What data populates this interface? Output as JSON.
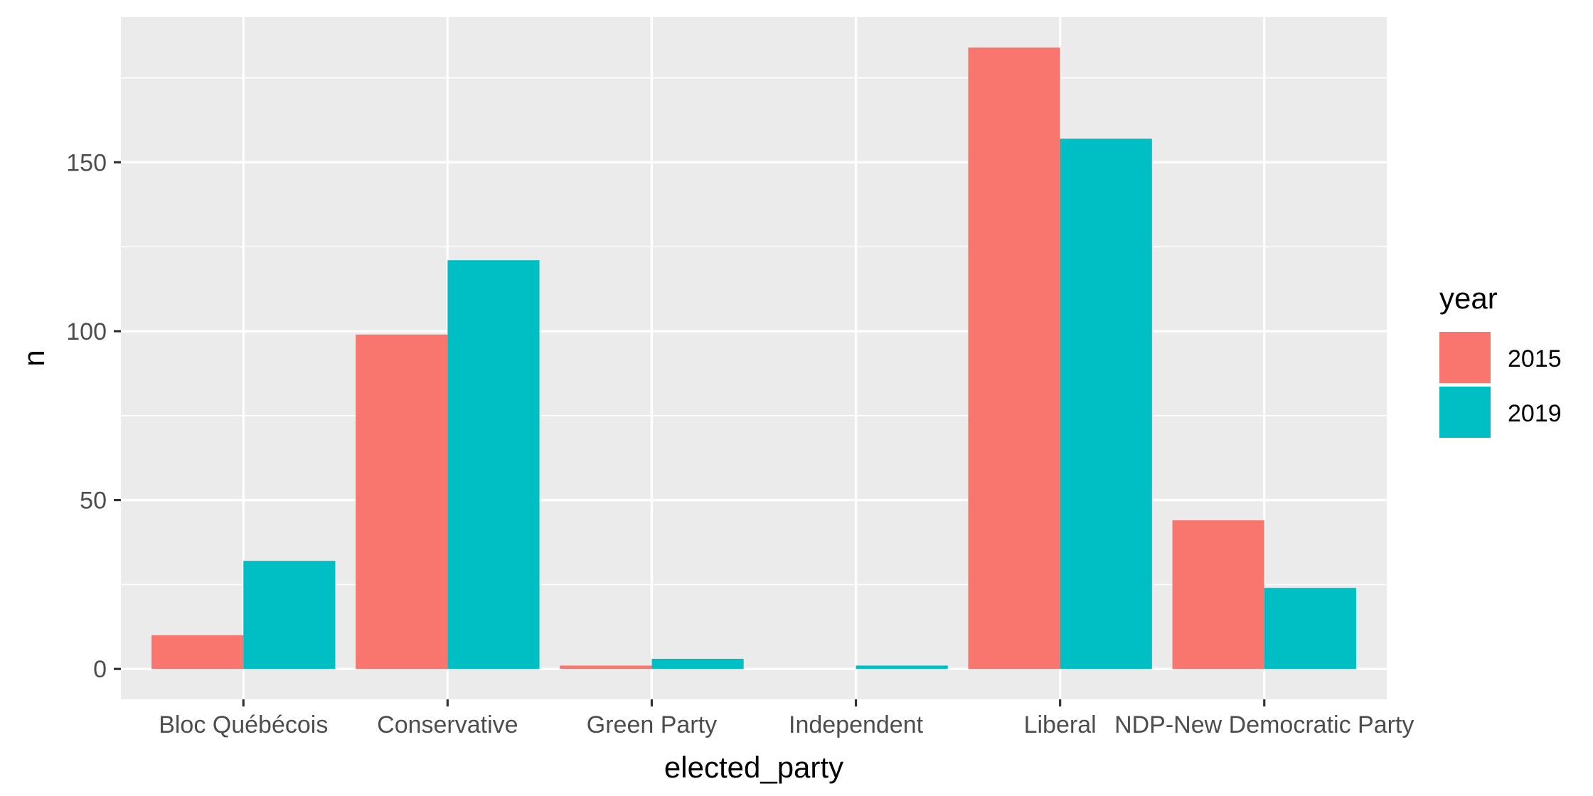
{
  "chart_data": {
    "type": "bar",
    "xlabel": "elected_party",
    "ylabel": "n",
    "categories": [
      "Bloc Québécois",
      "Conservative",
      "Green Party",
      "Independent",
      "Liberal",
      "NDP-New Democratic Party"
    ],
    "series": [
      {
        "name": "2015",
        "color": "#F8766D",
        "values": [
          10,
          99,
          1,
          0,
          184,
          44
        ]
      },
      {
        "name": "2019",
        "color": "#00BFC4",
        "values": [
          32,
          121,
          3,
          1,
          157,
          24
        ]
      }
    ],
    "ylim": [
      -9,
      193
    ],
    "yticks": [
      0,
      50,
      100,
      150
    ],
    "legend": {
      "title": "year",
      "position": "right"
    },
    "panel_background": "#EBEBEB",
    "grid": true
  }
}
